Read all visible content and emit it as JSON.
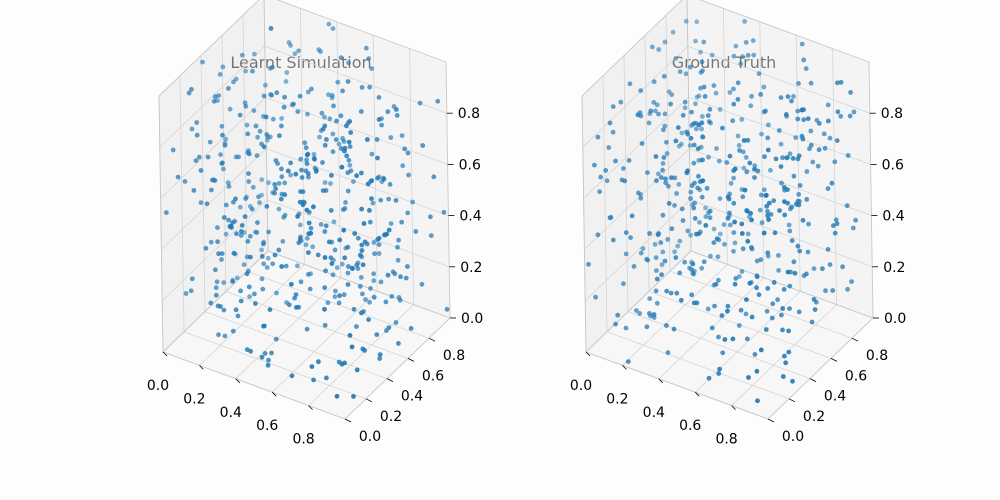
{
  "chart_data": [
    {
      "type": "scatter",
      "projection": "3d",
      "title": "Learnt Simulation",
      "color": "#1f77b4",
      "grid": true,
      "xlim": [
        0,
        1
      ],
      "ylim": [
        0,
        1
      ],
      "zlim": [
        0,
        1
      ],
      "xticks": [
        "0.0",
        "0.2",
        "0.4",
        "0.6",
        "0.8"
      ],
      "yticks": [
        "0.0",
        "0.2",
        "0.4",
        "0.6",
        "0.8"
      ],
      "zticks": [
        "0.0",
        "0.2",
        "0.4",
        "0.6",
        "0.8"
      ],
      "n_points": 500,
      "points_note": "uniformly distributed random points in the unit cube; individual values not legible"
    },
    {
      "type": "scatter",
      "projection": "3d",
      "title": "Ground Truth",
      "color": "#1f77b4",
      "grid": true,
      "xlim": [
        0,
        1
      ],
      "ylim": [
        0,
        1
      ],
      "zlim": [
        0,
        1
      ],
      "xticks": [
        "0.0",
        "0.2",
        "0.4",
        "0.6",
        "0.8"
      ],
      "yticks": [
        "0.0",
        "0.2",
        "0.4",
        "0.6",
        "0.8"
      ],
      "zticks": [
        "0.0",
        "0.2",
        "0.4",
        "0.6",
        "0.8"
      ],
      "n_points": 500,
      "points_note": "uniformly distributed random points in the unit cube; individual values not legible"
    }
  ]
}
